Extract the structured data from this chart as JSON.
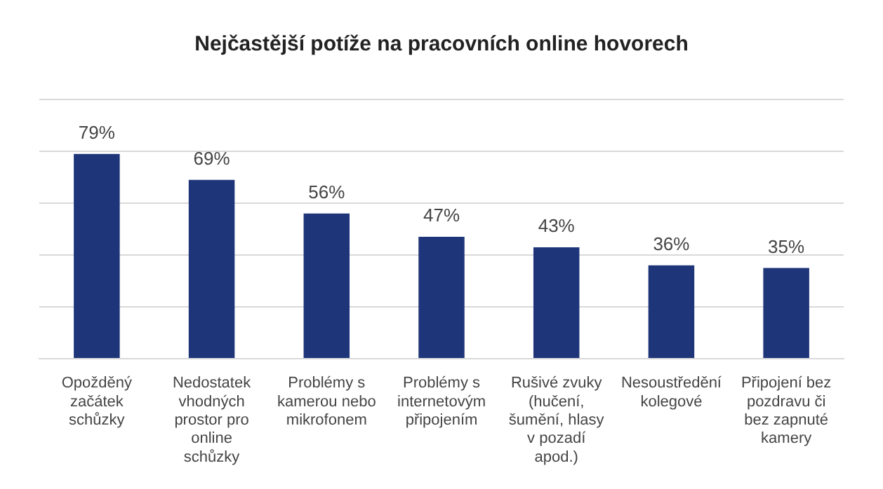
{
  "chart_data": {
    "type": "bar",
    "title": "Nejčastější potíže na pracovních online hovorech",
    "categories": [
      "Opožděný začátek schůzky",
      "Nedostatek vhodných prostor pro online schůzky",
      "Problémy s kamerou nebo mikrofonem",
      "Problémy s internetovým připojením",
      "Rušivé zvuky (hučení, šumění, hlasy v pozadí apod.)",
      "Nesoustředění kolegové",
      "Připojení bez pozdravu či bez zapnuté kamery"
    ],
    "values": [
      79,
      69,
      56,
      47,
      43,
      36,
      35
    ],
    "value_labels": [
      "79%",
      "69%",
      "56%",
      "47%",
      "43%",
      "36%",
      "35%"
    ],
    "color": "#1f3579",
    "ylim": [
      0,
      100
    ],
    "yticks": [
      {
        "value": 0,
        "label": null
      },
      {
        "value": 20,
        "label": null
      },
      {
        "value": 40,
        "label": null
      },
      {
        "value": 60,
        "label": null
      },
      {
        "value": 80,
        "label": null
      },
      {
        "value": 100,
        "label": null
      }
    ],
    "tick_labels": "x",
    "grid": "y"
  }
}
